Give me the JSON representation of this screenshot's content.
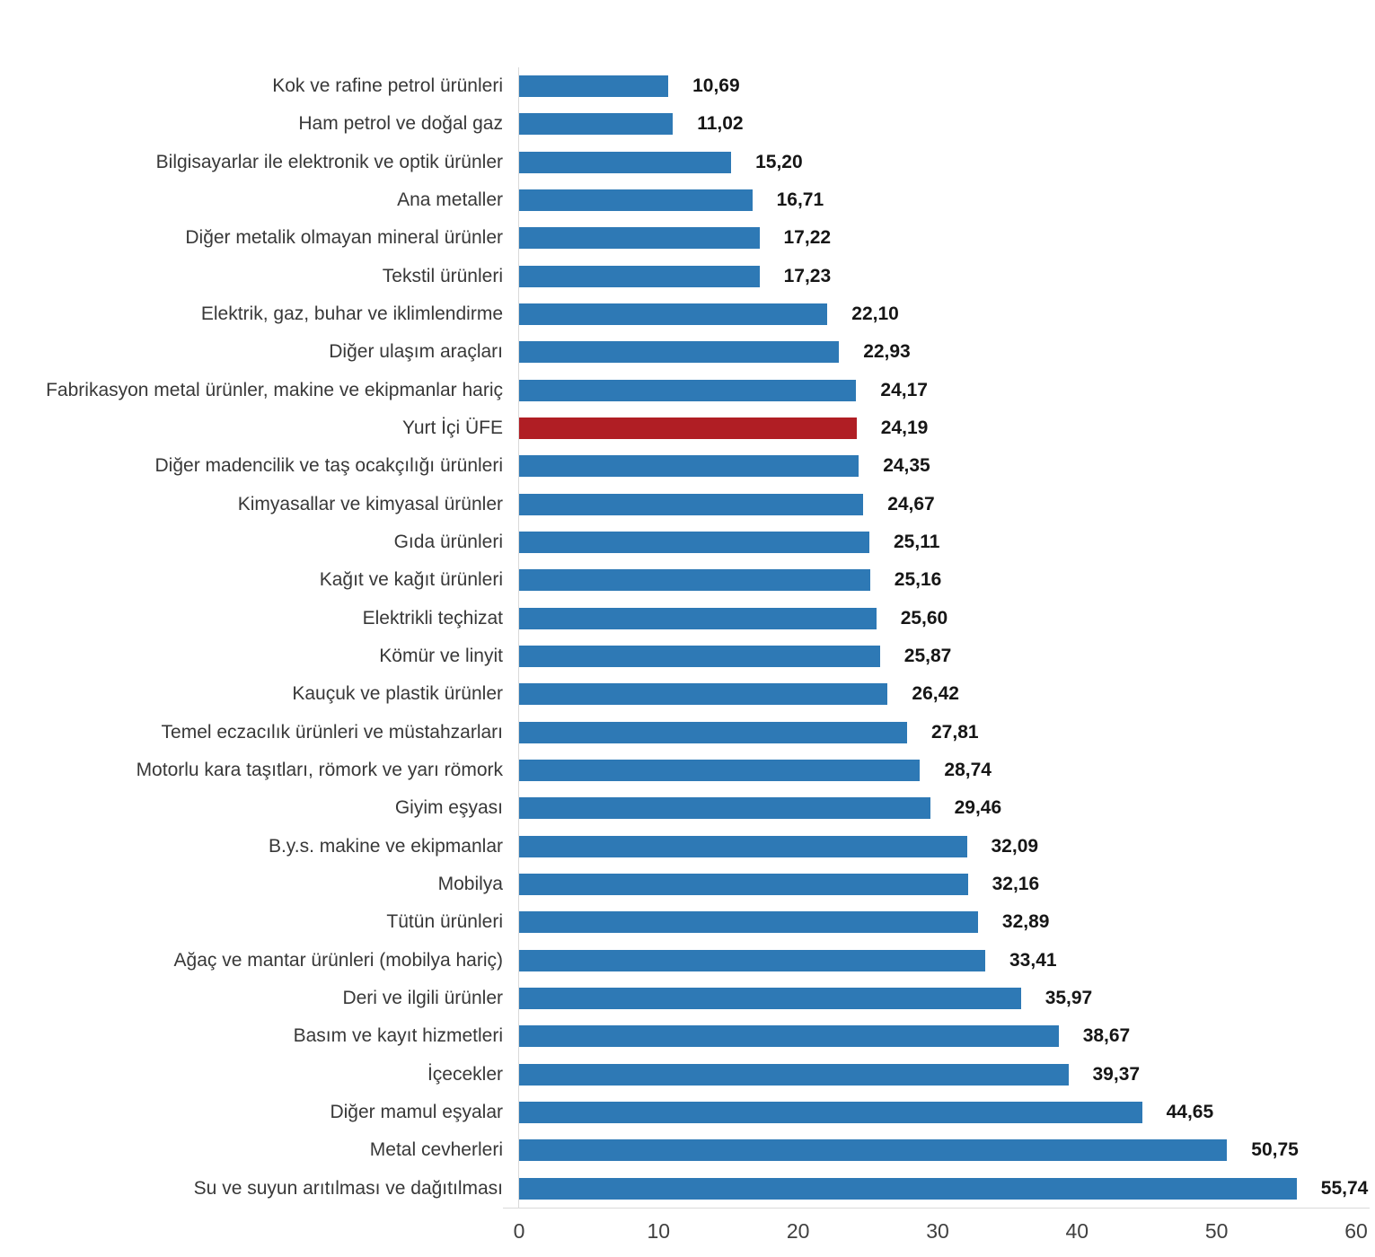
{
  "chart_data": {
    "type": "bar",
    "orientation": "horizontal",
    "title": "",
    "xlabel": "",
    "ylabel": "",
    "xlim": [
      0,
      60
    ],
    "x_ticks": [
      "0",
      "10",
      "20",
      "30",
      "40",
      "50",
      "60"
    ],
    "grid": false,
    "legend": "none",
    "categories": [
      "Kok ve rafine petrol ürünleri",
      "Ham petrol ve doğal gaz",
      "Bilgisayarlar ile elektronik ve optik ürünler",
      "Ana metaller",
      "Diğer metalik olmayan mineral ürünler",
      "Tekstil ürünleri",
      "Elektrik, gaz, buhar ve iklimlendirme",
      "Diğer ulaşım araçları",
      "Fabrikasyon metal ürünler, makine ve ekipmanlar hariç",
      "Yurt İçi ÜFE",
      "Diğer madencilik ve taş ocakçılığı ürünleri",
      "Kimyasallar ve kimyasal ürünler",
      "Gıda ürünleri",
      "Kağıt ve kağıt ürünleri",
      "Elektrikli teçhizat",
      "Kömür ve linyit",
      "Kauçuk ve plastik ürünler",
      "Temel eczacılık ürünleri ve müstahzarları",
      "Motorlu kara taşıtları, römork ve yarı römork",
      "Giyim eşyası",
      "B.y.s. makine ve ekipmanlar",
      "Mobilya",
      "Tütün ürünleri",
      "Ağaç ve mantar ürünleri (mobilya hariç)",
      "Deri ve ilgili ürünler",
      "Basım ve kayıt hizmetleri",
      "İçecekler",
      "Diğer mamul eşyalar",
      "Metal cevherleri",
      "Su ve suyun arıtılması ve dağıtılması"
    ],
    "values": [
      10.69,
      11.02,
      15.2,
      16.71,
      17.22,
      17.23,
      22.1,
      22.93,
      24.17,
      24.19,
      24.35,
      24.67,
      25.11,
      25.16,
      25.6,
      25.87,
      26.42,
      27.81,
      28.74,
      29.46,
      32.09,
      32.16,
      32.89,
      33.41,
      35.97,
      38.67,
      39.37,
      44.65,
      50.75,
      55.74
    ],
    "value_labels": [
      "10,69",
      "11,02",
      "15,20",
      "16,71",
      "17,22",
      "17,23",
      "22,10",
      "22,93",
      "24,17",
      "24,19",
      "24,35",
      "24,67",
      "25,11",
      "25,16",
      "25,60",
      "25,87",
      "26,42",
      "27,81",
      "28,74",
      "29,46",
      "32,09",
      "32,16",
      "32,89",
      "33,41",
      "35,97",
      "38,67",
      "39,37",
      "44,65",
      "50,75",
      "55,74"
    ],
    "highlight_category": "Yurt İçi ÜFE",
    "highlight_index": 9,
    "bar_color": "#2e79b5",
    "highlight_color": "#b01e24",
    "axis_line_color": "#d9d9d9"
  }
}
